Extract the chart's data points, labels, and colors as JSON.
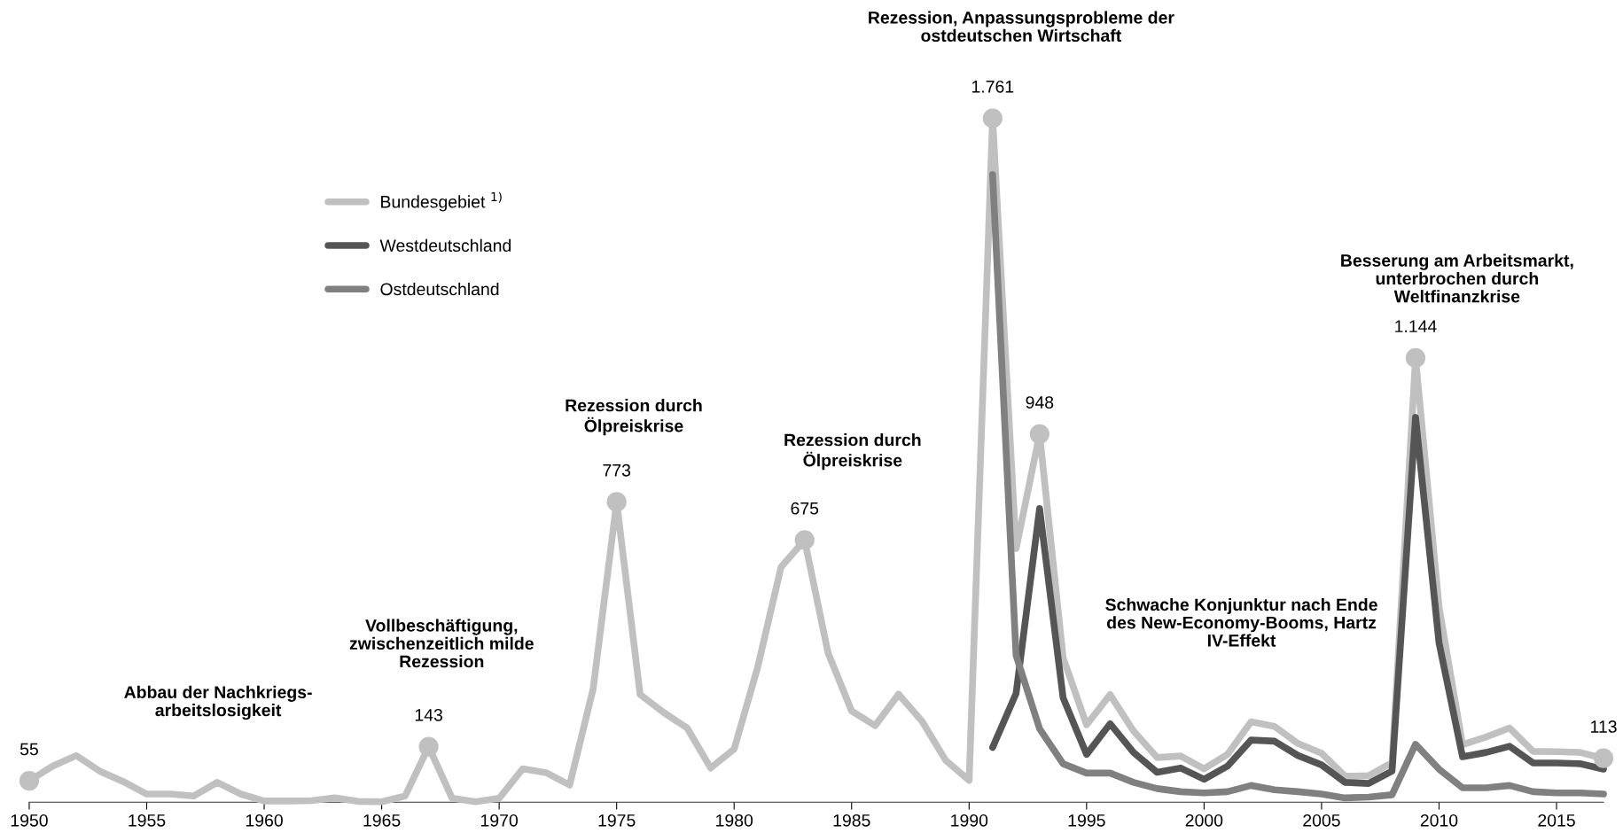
{
  "chart_data": {
    "type": "line",
    "x": [
      1950,
      1951,
      1952,
      1953,
      1954,
      1955,
      1956,
      1957,
      1958,
      1959,
      1960,
      1961,
      1962,
      1963,
      1964,
      1965,
      1966,
      1967,
      1968,
      1969,
      1970,
      1971,
      1972,
      1973,
      1974,
      1975,
      1976,
      1977,
      1978,
      1979,
      1980,
      1981,
      1982,
      1983,
      1984,
      1985,
      1986,
      1987,
      1988,
      1989,
      1990,
      1991,
      1992,
      1993,
      1994,
      1995,
      1996,
      1997,
      1998,
      1999,
      2000,
      2001,
      2002,
      2003,
      2004,
      2005,
      2006,
      2007,
      2008,
      2009,
      2010,
      2011,
      2012,
      2013,
      2014,
      2015,
      2016,
      2017
    ],
    "xlim": [
      1950,
      2017
    ],
    "xticks": [
      1950,
      1955,
      1960,
      1965,
      1970,
      1975,
      1980,
      1985,
      1990,
      1995,
      2000,
      2005,
      2010,
      2015
    ],
    "tick_labels": "x",
    "grid": false,
    "legend": "top left",
    "line_style": "solid",
    "series": [
      {
        "name": "Bundesgebiet $^{1)}$",
        "color": "#c0c0c0",
        "values": [
          55,
          93,
          120,
          80,
          53,
          21,
          21,
          16,
          51,
          21,
          3,
          3,
          4,
          11,
          2,
          1,
          16,
          143,
          10,
          1,
          10,
          86,
          76,
          44,
          292,
          773,
          277,
          231,
          191,
          88,
          137,
          347,
          606,
          675,
          384,
          235,
          197,
          278,
          208,
          108,
          56,
          1761,
          653,
          948,
          372,
          199,
          277,
          183,
          115,
          119,
          86,
          123,
          207,
          195,
          151,
          126,
          67,
          68,
          102,
          1144,
          503,
          148,
          168,
          191,
          131,
          130,
          128,
          113
        ],
        "value_labels": [
          "55",
          null,
          null,
          null,
          null,
          null,
          null,
          null,
          null,
          null,
          null,
          null,
          null,
          null,
          null,
          null,
          null,
          "143",
          null,
          null,
          null,
          null,
          null,
          null,
          null,
          "773",
          null,
          null,
          null,
          null,
          null,
          null,
          null,
          "675",
          null,
          null,
          null,
          null,
          null,
          null,
          null,
          "1.761",
          null,
          "948",
          null,
          null,
          null,
          null,
          null,
          null,
          null,
          null,
          null,
          null,
          null,
          null,
          null,
          null,
          null,
          "1.144",
          null,
          null,
          null,
          null,
          null,
          null,
          null,
          "113"
        ]
      },
      {
        "name": "Westdeutschland",
        "color": "#555555",
        "values": [
          null,
          null,
          null,
          null,
          null,
          null,
          null,
          null,
          null,
          null,
          null,
          null,
          null,
          null,
          null,
          null,
          null,
          null,
          null,
          null,
          null,
          null,
          null,
          null,
          null,
          null,
          null,
          null,
          null,
          null,
          null,
          null,
          null,
          null,
          null,
          null,
          null,
          null,
          null,
          null,
          null,
          141,
          280,
          756,
          269,
          123,
          202,
          128,
          77,
          88,
          59,
          93,
          160,
          157,
          120,
          96,
          51,
          48,
          80,
          991,
          410,
          117,
          128,
          144,
          101,
          101,
          99,
          85
        ]
      },
      {
        "name": "Ostdeutschland",
        "color": "#808080",
        "values": [
          null,
          null,
          null,
          null,
          null,
          null,
          null,
          null,
          null,
          null,
          null,
          null,
          null,
          null,
          null,
          null,
          null,
          null,
          null,
          null,
          null,
          null,
          null,
          null,
          null,
          null,
          null,
          null,
          null,
          null,
          null,
          null,
          null,
          null,
          null,
          null,
          null,
          null,
          null,
          null,
          null,
          1616,
          378,
          189,
          99,
          75,
          75,
          51,
          35,
          27,
          24,
          27,
          43,
          32,
          27,
          21,
          11,
          13,
          19,
          149,
          85,
          37,
          37,
          43,
          27,
          24,
          24,
          21
        ]
      }
    ],
    "annotations": [
      "Abbau der Nachkriegs-\narbeitslosigkeit",
      "Vollbeschäftigung,\nzwischenzeitlich milde\nRezession",
      "Rezession durch\nÖlpreiskrise",
      "Rezession durch\nÖlpreiskrise",
      "Rezession, Anpassungsprobleme der\nostdeutschen Wirtschaft",
      "Besserung am Arbeitsmarkt,\nunterbrochen durch\nWeltfinanzkrise",
      "Schwache Konjunktur nach Ende\ndes New-Economy-Booms, Hartz\nIV-Effekt"
    ]
  }
}
